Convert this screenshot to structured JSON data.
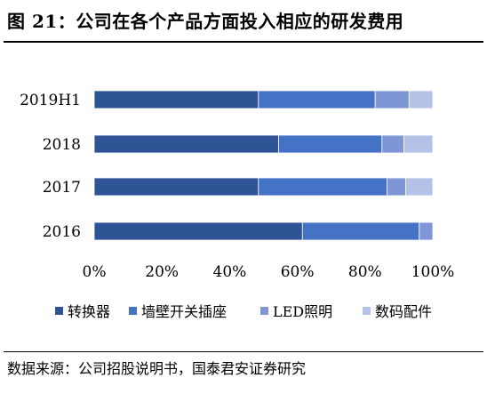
{
  "title": "图 21：公司在各个产品方面投入相应的研发费用",
  "source": "数据来源：公司招股说明书，国泰君安证券研究",
  "chart_data": {
    "type": "bar",
    "orientation": "horizontal",
    "stacked": "percent",
    "categories": [
      "2019H1",
      "2018",
      "2017",
      "2016"
    ],
    "series": [
      {
        "name": "转换器",
        "color": "#2F5496",
        "values": [
          48.5,
          54.5,
          48.5,
          61.5
        ]
      },
      {
        "name": "墙壁开关插座",
        "color": "#4472C4",
        "values": [
          34.5,
          30.5,
          38.0,
          34.5
        ]
      },
      {
        "name": "LED照明",
        "color": "#7F96D6",
        "values": [
          10.0,
          6.5,
          5.5,
          4.0
        ]
      },
      {
        "name": "数码配件",
        "color": "#B4C2E8",
        "values": [
          7.0,
          8.5,
          8.0,
          0.0
        ]
      }
    ],
    "xlim": [
      0,
      100
    ],
    "x_ticks": [
      "0%",
      "20%",
      "40%",
      "60%",
      "80%",
      "100%"
    ],
    "legend_position": "bottom",
    "grid": false
  }
}
